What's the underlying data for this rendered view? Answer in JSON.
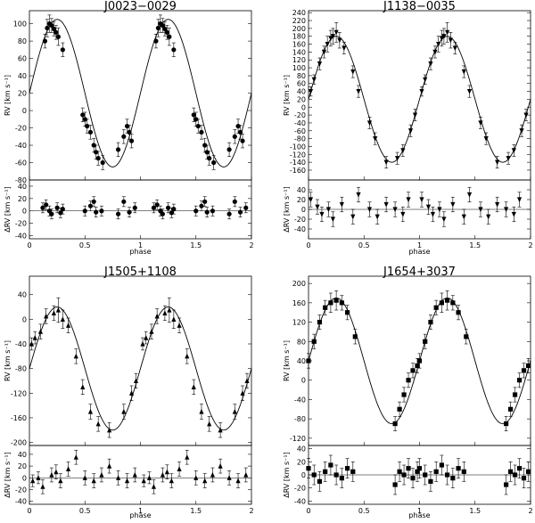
{
  "figure": {
    "x_tick_labels": [
      "0",
      "0.5",
      "1",
      "1.5",
      "2"
    ],
    "shared_xlabel": "phase",
    "rv_ylabel": "RV  [km s⁻¹]",
    "drv_ylabel": "ΔRV  [km s⁻¹]"
  },
  "chart_data": [
    {
      "type": "scatter",
      "title": "J0023−0029",
      "xlabel": "phase",
      "ylabel": "RV  [km s⁻¹]",
      "xlim": [
        0,
        2
      ],
      "ylim": [
        -80,
        115
      ],
      "yticks": [
        -80,
        -60,
        -40,
        -20,
        0,
        20,
        40,
        60,
        80,
        100
      ],
      "resid_ylabel": "ΔRV  [km s⁻¹]",
      "resid_ylim": [
        -45,
        50
      ],
      "resid_yticks": [
        -40,
        -20,
        0,
        20,
        40
      ],
      "marker": "circle",
      "model": {
        "gamma": 20,
        "K": 85,
        "phase_zero": 0
      },
      "series": [
        {
          "role": "rv",
          "phase": [
            0.14,
            0.16,
            0.18,
            0.2,
            0.22,
            0.24,
            0.26,
            0.3,
            0.48,
            0.5,
            0.52,
            0.55,
            0.58,
            0.6,
            0.62,
            0.66,
            0.8,
            0.85,
            0.88,
            0.9,
            0.92
          ],
          "value": [
            80,
            95,
            100,
            98,
            94,
            90,
            85,
            70,
            -5,
            -10,
            -18,
            -25,
            -40,
            -48,
            -55,
            -60,
            -45,
            -30,
            -18,
            -25,
            -35
          ],
          "error": [
            8,
            10,
            10,
            8,
            8,
            8,
            10,
            8,
            8,
            8,
            8,
            8,
            8,
            8,
            8,
            8,
            8,
            8,
            8,
            8,
            8
          ]
        },
        {
          "role": "residual",
          "phase": [
            0.12,
            0.15,
            0.18,
            0.2,
            0.25,
            0.28,
            0.3,
            0.5,
            0.55,
            0.58,
            0.6,
            0.65,
            0.8,
            0.85,
            0.9,
            0.95
          ],
          "value": [
            5,
            10,
            0,
            -5,
            5,
            -3,
            3,
            0,
            8,
            15,
            -2,
            0,
            -5,
            15,
            -2,
            5
          ],
          "error": [
            8,
            8,
            8,
            8,
            8,
            8,
            8,
            8,
            8,
            8,
            8,
            8,
            8,
            8,
            8,
            8
          ]
        }
      ]
    },
    {
      "type": "scatter",
      "title": "J1138−0035",
      "xlabel": "phase",
      "ylabel": "RV  [km s⁻¹]",
      "xlim": [
        0,
        2
      ],
      "ylim": [
        -185,
        245
      ],
      "yticks": [
        -160,
        -140,
        -120,
        -100,
        -80,
        -60,
        -40,
        -20,
        0,
        20,
        40,
        60,
        80,
        100,
        120,
        140,
        160,
        180,
        200,
        220,
        240
      ],
      "resid_ylabel": "ΔRV  [km s⁻¹]",
      "resid_ylim": [
        -60,
        60
      ],
      "resid_yticks": [
        -40,
        -20,
        0,
        20,
        40
      ],
      "marker": "triangle-down",
      "model": {
        "gamma": 20,
        "K": 160,
        "phase_zero": 0
      },
      "series": [
        {
          "role": "rv",
          "phase": [
            0.02,
            0.05,
            0.1,
            0.14,
            0.17,
            0.2,
            0.22,
            0.25,
            0.28,
            0.32,
            0.4,
            0.45,
            0.55,
            0.6,
            0.7,
            0.8,
            0.85,
            0.92,
            0.96
          ],
          "value": [
            40,
            70,
            110,
            140,
            160,
            175,
            180,
            190,
            170,
            150,
            90,
            40,
            -40,
            -80,
            -140,
            -130,
            -110,
            -60,
            -20
          ],
          "error": [
            12,
            12,
            15,
            15,
            20,
            20,
            20,
            25,
            20,
            15,
            15,
            15,
            15,
            15,
            15,
            15,
            15,
            15,
            15
          ]
        },
        {
          "role": "residual",
          "phase": [
            0.02,
            0.08,
            0.12,
            0.18,
            0.22,
            0.3,
            0.4,
            0.45,
            0.55,
            0.62,
            0.7,
            0.78,
            0.85,
            0.9
          ],
          "value": [
            20,
            5,
            -10,
            0,
            -20,
            10,
            -15,
            30,
            0,
            -15,
            10,
            0,
            -10,
            20
          ],
          "error": [
            15,
            15,
            15,
            15,
            15,
            15,
            15,
            15,
            15,
            15,
            15,
            15,
            15,
            15
          ]
        }
      ]
    },
    {
      "type": "scatter",
      "title": "J1505+1108",
      "xlabel": "phase",
      "ylabel": "RV  [km s⁻¹]",
      "xlim": [
        0,
        2
      ],
      "ylim": [
        -205,
        70
      ],
      "yticks": [
        -200,
        -160,
        -120,
        -80,
        -40,
        0,
        40
      ],
      "resid_ylabel": "ΔRV  [km s⁻¹]",
      "resid_ylim": [
        -45,
        55
      ],
      "resid_yticks": [
        -40,
        -20,
        0,
        20,
        40
      ],
      "marker": "triangle-up",
      "model": {
        "gamma": -80,
        "K": 100,
        "phase_zero": 0
      },
      "series": [
        {
          "role": "rv",
          "phase": [
            0.02,
            0.05,
            0.1,
            0.15,
            0.22,
            0.26,
            0.3,
            0.35,
            0.42,
            0.48,
            0.55,
            0.62,
            0.72,
            0.85,
            0.92,
            0.96
          ],
          "value": [
            -40,
            -30,
            -20,
            5,
            10,
            15,
            0,
            -10,
            -60,
            -110,
            -150,
            -170,
            -180,
            -150,
            -120,
            -100
          ],
          "error": [
            10,
            10,
            12,
            12,
            12,
            20,
            15,
            12,
            12,
            12,
            12,
            12,
            12,
            12,
            12,
            12
          ]
        },
        {
          "role": "residual",
          "phase": [
            0.03,
            0.08,
            0.12,
            0.2,
            0.24,
            0.28,
            0.35,
            0.42,
            0.5,
            0.58,
            0.65,
            0.72,
            0.8,
            0.88,
            0.95
          ],
          "value": [
            -5,
            0,
            -15,
            5,
            10,
            -5,
            15,
            35,
            0,
            -5,
            5,
            20,
            0,
            -5,
            5
          ],
          "error": [
            10,
            10,
            12,
            12,
            12,
            12,
            12,
            12,
            12,
            12,
            12,
            12,
            12,
            12,
            12
          ]
        }
      ]
    },
    {
      "type": "scatter",
      "title": "J1654+3037",
      "xlabel": "phase",
      "ylabel": "RV  [km s⁻¹]",
      "xlim": [
        0,
        2
      ],
      "ylim": [
        -135,
        215
      ],
      "yticks": [
        -120,
        -80,
        -40,
        0,
        40,
        80,
        120,
        160,
        200
      ],
      "resid_ylabel": "ΔRV  [km s⁻¹]",
      "resid_ylim": [
        -45,
        45
      ],
      "resid_yticks": [
        -40,
        -20,
        0,
        20,
        40
      ],
      "marker": "square",
      "model": {
        "gamma": 40,
        "K": 130,
        "phase_zero": 0
      },
      "series": [
        {
          "role": "rv",
          "phase": [
            0.0,
            0.05,
            0.1,
            0.15,
            0.2,
            0.25,
            0.3,
            0.35,
            0.42,
            0.78,
            0.82,
            0.86,
            0.9,
            0.94,
            0.98
          ],
          "value": [
            40,
            80,
            120,
            150,
            160,
            165,
            160,
            140,
            90,
            -90,
            -60,
            -30,
            0,
            20,
            30
          ],
          "error": [
            15,
            15,
            15,
            15,
            20,
            20,
            15,
            15,
            15,
            15,
            15,
            15,
            15,
            15,
            15
          ]
        },
        {
          "role": "residual",
          "phase": [
            0.0,
            0.05,
            0.1,
            0.15,
            0.2,
            0.25,
            0.3,
            0.35,
            0.4,
            0.78,
            0.82,
            0.86,
            0.9,
            0.94,
            0.98
          ],
          "value": [
            10,
            0,
            -10,
            5,
            15,
            0,
            -5,
            10,
            5,
            -15,
            5,
            0,
            10,
            -5,
            5
          ],
          "error": [
            15,
            15,
            15,
            15,
            15,
            15,
            15,
            15,
            15,
            15,
            15,
            15,
            15,
            15,
            15
          ]
        }
      ]
    }
  ]
}
